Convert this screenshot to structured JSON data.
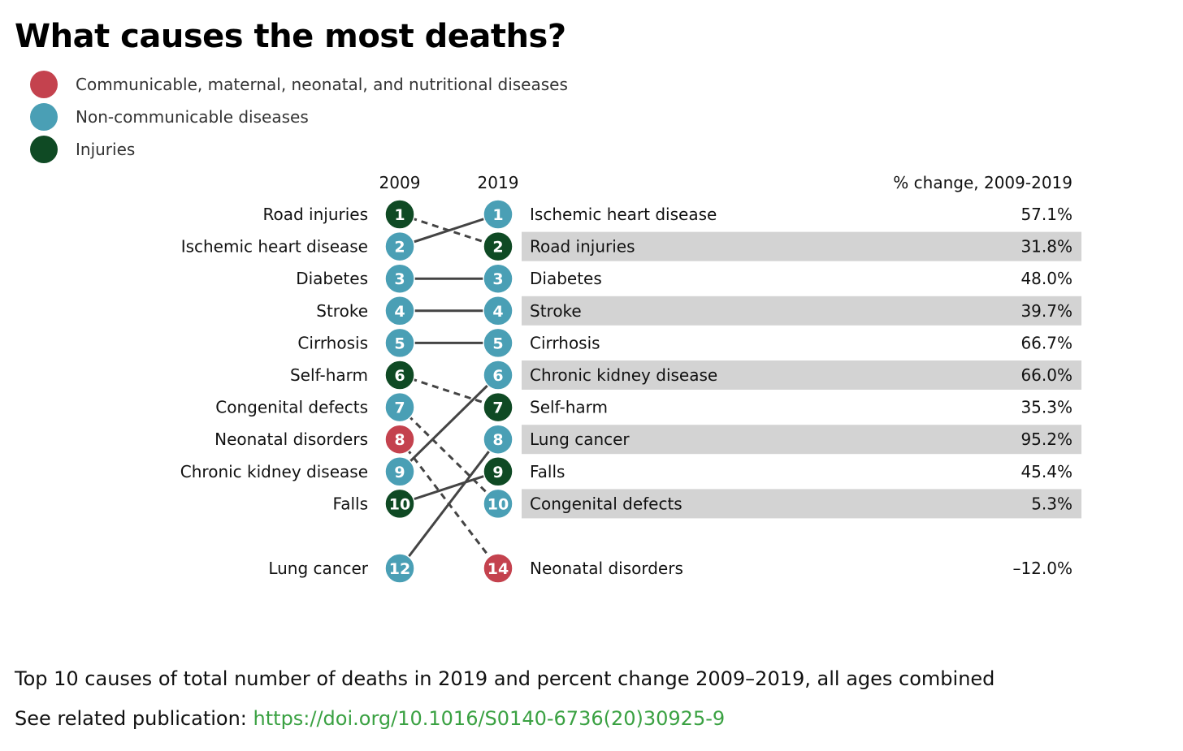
{
  "title": "What causes the most deaths?",
  "legend": [
    {
      "key": "communicable",
      "label": "Communicable, maternal, neonatal, and nutritional diseases",
      "color": "#c4424e"
    },
    {
      "key": "noncommunicable",
      "label": "Non-communicable diseases",
      "color": "#4a9fb5"
    },
    {
      "key": "injuries",
      "label": "Injuries",
      "color": "#0f4a24"
    }
  ],
  "chart_data": {
    "type": "table",
    "subtype": "slope-rank",
    "columns": {
      "left_year": "2009",
      "right_year": "2019",
      "change_header": "% change, 2009-2019"
    },
    "left": [
      {
        "label": "Road injuries",
        "rank": 1,
        "category": "injuries"
      },
      {
        "label": "Ischemic heart disease",
        "rank": 2,
        "category": "noncommunicable"
      },
      {
        "label": "Diabetes",
        "rank": 3,
        "category": "noncommunicable"
      },
      {
        "label": "Stroke",
        "rank": 4,
        "category": "noncommunicable"
      },
      {
        "label": "Cirrhosis",
        "rank": 5,
        "category": "noncommunicable"
      },
      {
        "label": "Self-harm",
        "rank": 6,
        "category": "injuries"
      },
      {
        "label": "Congenital defects",
        "rank": 7,
        "category": "noncommunicable"
      },
      {
        "label": "Neonatal disorders",
        "rank": 8,
        "category": "communicable"
      },
      {
        "label": "Chronic kidney disease",
        "rank": 9,
        "category": "noncommunicable"
      },
      {
        "label": "Falls",
        "rank": 10,
        "category": "injuries"
      },
      {
        "label": "Lung cancer",
        "rank": 12,
        "category": "noncommunicable"
      }
    ],
    "right": [
      {
        "label": "Ischemic heart disease",
        "rank": 1,
        "category": "noncommunicable",
        "change": "57.1%"
      },
      {
        "label": "Road injuries",
        "rank": 2,
        "category": "injuries",
        "change": "31.8%"
      },
      {
        "label": "Diabetes",
        "rank": 3,
        "category": "noncommunicable",
        "change": "48.0%"
      },
      {
        "label": "Stroke",
        "rank": 4,
        "category": "noncommunicable",
        "change": "39.7%"
      },
      {
        "label": "Cirrhosis",
        "rank": 5,
        "category": "noncommunicable",
        "change": "66.7%"
      },
      {
        "label": "Chronic kidney disease",
        "rank": 6,
        "category": "noncommunicable",
        "change": "66.0%"
      },
      {
        "label": "Self-harm",
        "rank": 7,
        "category": "injuries",
        "change": "35.3%"
      },
      {
        "label": "Lung cancer",
        "rank": 8,
        "category": "noncommunicable",
        "change": "95.2%"
      },
      {
        "label": "Falls",
        "rank": 9,
        "category": "injuries",
        "change": "45.4%"
      },
      {
        "label": "Congenital defects",
        "rank": 10,
        "category": "noncommunicable",
        "change": "5.3%"
      },
      {
        "label": "Neonatal disorders",
        "rank": 14,
        "category": "communicable",
        "change": "–12.0%"
      }
    ],
    "connectors": [
      {
        "label": "Road injuries",
        "from": 1,
        "to": 2,
        "style": "dashed"
      },
      {
        "label": "Ischemic heart disease",
        "from": 2,
        "to": 1,
        "style": "solid"
      },
      {
        "label": "Diabetes",
        "from": 3,
        "to": 3,
        "style": "solid"
      },
      {
        "label": "Stroke",
        "from": 4,
        "to": 4,
        "style": "solid"
      },
      {
        "label": "Cirrhosis",
        "from": 5,
        "to": 5,
        "style": "solid"
      },
      {
        "label": "Self-harm",
        "from": 6,
        "to": 7,
        "style": "dashed"
      },
      {
        "label": "Congenital defects",
        "from": 7,
        "to": 10,
        "style": "dashed"
      },
      {
        "label": "Neonatal disorders",
        "from": 8,
        "to": 14,
        "style": "dashed"
      },
      {
        "label": "Chronic kidney disease",
        "from": 9,
        "to": 6,
        "style": "solid"
      },
      {
        "label": "Falls",
        "from": 10,
        "to": 9,
        "style": "solid"
      },
      {
        "label": "Lung cancer",
        "from": 12,
        "to": 8,
        "style": "solid"
      }
    ],
    "colors": {
      "band": "#d3d3d3",
      "connector": "#444444"
    }
  },
  "footer": {
    "caption": "Top 10 causes of total number of deaths in 2019 and percent change 2009–2019, all ages combined",
    "related_prefix": "See related publication: ",
    "link_text": "https://doi.org/10.1016/S0140-6736(20)30925-9"
  }
}
